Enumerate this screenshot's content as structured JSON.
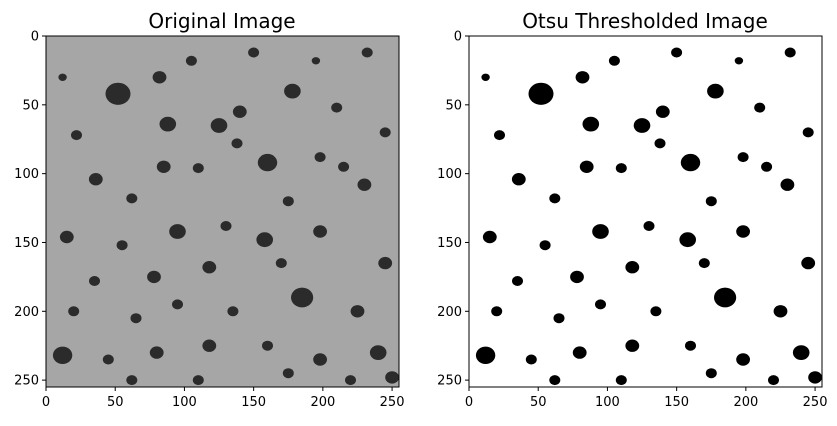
{
  "chart_data": [
    {
      "type": "heatmap",
      "title": "Original Image",
      "xlabel": "",
      "ylabel": "",
      "xlim": [
        0,
        255
      ],
      "ylim": [
        255,
        0
      ],
      "xticks": [
        0,
        50,
        100,
        150,
        200,
        250
      ],
      "yticks": [
        0,
        50,
        100,
        150,
        200,
        250
      ],
      "xtick_labels": [
        "0",
        "50",
        "100",
        "150",
        "200",
        "250"
      ],
      "ytick_labels": [
        "0",
        "50",
        "100",
        "150",
        "200",
        "250"
      ],
      "colormap": "gray",
      "background_color": "#a6a6a6",
      "particle_color": "#2b2b2b",
      "grid": false
    },
    {
      "type": "heatmap",
      "title": "Otsu Thresholded Image",
      "xlabel": "",
      "ylabel": "",
      "xlim": [
        0,
        255
      ],
      "ylim": [
        255,
        0
      ],
      "xticks": [
        0,
        50,
        100,
        150,
        200,
        250
      ],
      "yticks": [
        0,
        50,
        100,
        150,
        200,
        250
      ],
      "xtick_labels": [
        "0",
        "50",
        "100",
        "150",
        "200",
        "250"
      ],
      "ytick_labels": [
        "0",
        "50",
        "100",
        "150",
        "200",
        "250"
      ],
      "colormap": "binary",
      "background_color": "#ffffff",
      "particle_color": "#000000",
      "grid": false
    }
  ],
  "particles": [
    {
      "x": 52,
      "y": 42,
      "r": 9
    },
    {
      "x": 82,
      "y": 30,
      "r": 5
    },
    {
      "x": 105,
      "y": 18,
      "r": 4
    },
    {
      "x": 150,
      "y": 12,
      "r": 4
    },
    {
      "x": 178,
      "y": 40,
      "r": 6
    },
    {
      "x": 195,
      "y": 18,
      "r": 3
    },
    {
      "x": 210,
      "y": 52,
      "r": 4
    },
    {
      "x": 232,
      "y": 12,
      "r": 4
    },
    {
      "x": 22,
      "y": 72,
      "r": 4
    },
    {
      "x": 88,
      "y": 64,
      "r": 6
    },
    {
      "x": 140,
      "y": 55,
      "r": 5
    },
    {
      "x": 12,
      "y": 30,
      "r": 3
    },
    {
      "x": 85,
      "y": 95,
      "r": 5
    },
    {
      "x": 125,
      "y": 65,
      "r": 6
    },
    {
      "x": 138,
      "y": 78,
      "r": 4
    },
    {
      "x": 160,
      "y": 92,
      "r": 7
    },
    {
      "x": 198,
      "y": 88,
      "r": 4
    },
    {
      "x": 245,
      "y": 70,
      "r": 4
    },
    {
      "x": 36,
      "y": 104,
      "r": 5
    },
    {
      "x": 62,
      "y": 118,
      "r": 4
    },
    {
      "x": 110,
      "y": 96,
      "r": 4
    },
    {
      "x": 175,
      "y": 120,
      "r": 4
    },
    {
      "x": 215,
      "y": 95,
      "r": 4
    },
    {
      "x": 230,
      "y": 108,
      "r": 5
    },
    {
      "x": 15,
      "y": 146,
      "r": 5
    },
    {
      "x": 55,
      "y": 152,
      "r": 4
    },
    {
      "x": 95,
      "y": 142,
      "r": 6
    },
    {
      "x": 130,
      "y": 138,
      "r": 4
    },
    {
      "x": 158,
      "y": 148,
      "r": 6
    },
    {
      "x": 198,
      "y": 142,
      "r": 5
    },
    {
      "x": 35,
      "y": 178,
      "r": 4
    },
    {
      "x": 78,
      "y": 175,
      "r": 5
    },
    {
      "x": 118,
      "y": 168,
      "r": 5
    },
    {
      "x": 170,
      "y": 165,
      "r": 4
    },
    {
      "x": 245,
      "y": 165,
      "r": 5
    },
    {
      "x": 20,
      "y": 200,
      "r": 4
    },
    {
      "x": 65,
      "y": 205,
      "r": 4
    },
    {
      "x": 95,
      "y": 195,
      "r": 4
    },
    {
      "x": 135,
      "y": 200,
      "r": 4
    },
    {
      "x": 185,
      "y": 190,
      "r": 8
    },
    {
      "x": 225,
      "y": 200,
      "r": 5
    },
    {
      "x": 12,
      "y": 232,
      "r": 7
    },
    {
      "x": 45,
      "y": 235,
      "r": 4
    },
    {
      "x": 80,
      "y": 230,
      "r": 5
    },
    {
      "x": 118,
      "y": 225,
      "r": 5
    },
    {
      "x": 160,
      "y": 225,
      "r": 4
    },
    {
      "x": 198,
      "y": 235,
      "r": 5
    },
    {
      "x": 240,
      "y": 230,
      "r": 6
    },
    {
      "x": 62,
      "y": 250,
      "r": 4
    },
    {
      "x": 110,
      "y": 250,
      "r": 4
    },
    {
      "x": 175,
      "y": 245,
      "r": 4
    },
    {
      "x": 220,
      "y": 250,
      "r": 4
    },
    {
      "x": 250,
      "y": 248,
      "r": 5
    }
  ]
}
